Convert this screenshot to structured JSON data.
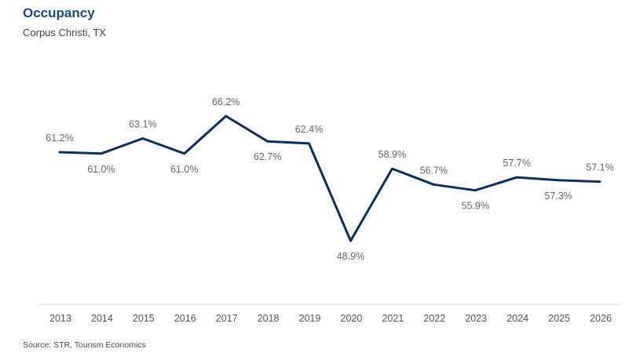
{
  "chart_data": {
    "type": "line",
    "title": "Occupancy",
    "subtitle": "Corpus Christi, TX",
    "source": "Source: STR, Tourism Economics",
    "categories": [
      "2013",
      "2014",
      "2015",
      "2016",
      "2017",
      "2018",
      "2019",
      "2020",
      "2021",
      "2022",
      "2023",
      "2024",
      "2025",
      "2026"
    ],
    "series": [
      {
        "name": "Occupancy",
        "values": [
          61.2,
          61.0,
          63.1,
          61.0,
          66.2,
          62.7,
          62.4,
          48.9,
          58.9,
          56.7,
          55.9,
          57.7,
          57.3,
          57.1
        ],
        "labels": [
          "61.2%",
          "61.0%",
          "63.1%",
          "61.0%",
          "66.2%",
          "62.7%",
          "62.4%",
          "48.9%",
          "58.9%",
          "56.7%",
          "55.9%",
          "57.7%",
          "57.3%",
          "57.1%"
        ],
        "label_positions": [
          "above",
          "below",
          "above",
          "below",
          "above",
          "below",
          "above",
          "below",
          "above",
          "above",
          "below",
          "above",
          "below",
          "above"
        ]
      }
    ],
    "xlabel": "",
    "ylabel": "",
    "ylim": [
      40,
      80
    ],
    "grid": false,
    "legend": "none",
    "colors": {
      "line": "#0e2f5a",
      "title": "#1a4a7f",
      "axis": "#d9d9d9"
    }
  }
}
